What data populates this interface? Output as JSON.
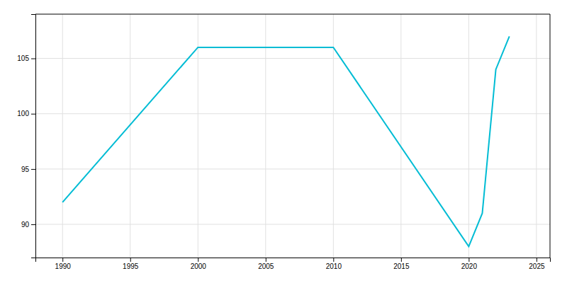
{
  "chart_data": {
    "type": "line",
    "x": [
      1990,
      2000,
      2010,
      2020,
      2021,
      2022,
      2023
    ],
    "values": [
      92,
      106,
      106,
      88,
      91,
      104,
      107
    ],
    "color": "#00bcd4",
    "xlim": [
      1988,
      2026
    ],
    "ylim": [
      87,
      109
    ],
    "xticks": [
      1990,
      1995,
      2000,
      2005,
      2010,
      2015,
      2020,
      2025
    ],
    "yticks": [
      90,
      95,
      100,
      105
    ],
    "grid": true
  }
}
